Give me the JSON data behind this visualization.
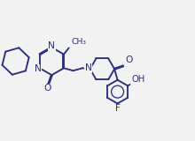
{
  "bg_color": "#f2f2f2",
  "line_color": "#2d2d80",
  "line_width": 1.35,
  "font_size": 7.2,
  "font_color": "#2d2d80",
  "xlim": [
    0.0,
    11.5
  ],
  "ylim": [
    1.5,
    8.5
  ]
}
